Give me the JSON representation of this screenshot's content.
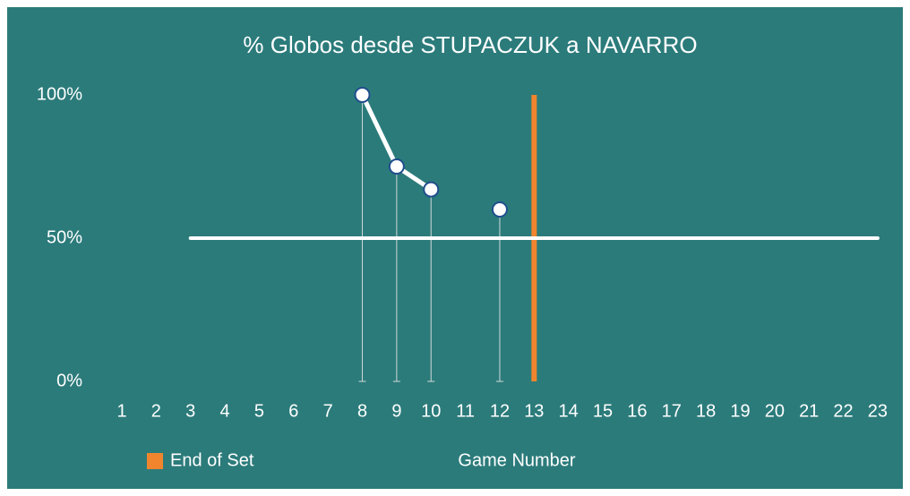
{
  "chart_data": {
    "type": "line",
    "title": "% Globos desde STUPACZUK a NAVARRO",
    "x_label": "Game Number",
    "categories": [
      "1",
      "2",
      "3",
      "4",
      "5",
      "6",
      "7",
      "8",
      "9",
      "10",
      "11",
      "12",
      "13",
      "14",
      "15",
      "16",
      "17",
      "18",
      "19",
      "20",
      "21",
      "22",
      "23"
    ],
    "series": [
      {
        "color": "#ffffff",
        "values": [
          null,
          null,
          null,
          null,
          null,
          null,
          null,
          100,
          75,
          67,
          null,
          60,
          null,
          null,
          null,
          null,
          null,
          null,
          null,
          null,
          null,
          null,
          null
        ],
        "markers": true
      },
      {
        "color": "#ffffff",
        "values": [
          null,
          null,
          50,
          50,
          50,
          50,
          50,
          50,
          50,
          50,
          50,
          50,
          50,
          50,
          50,
          50,
          50,
          50,
          50,
          50,
          50,
          50,
          50
        ],
        "markers": false
      }
    ],
    "end_of_set": {
      "label": "End of Set",
      "category": "13",
      "color": "#f0852d"
    },
    "ylim": [
      0,
      100
    ],
    "yticks": [
      {
        "value": 0,
        "label": "0%"
      },
      {
        "value": 50,
        "label": "50%"
      },
      {
        "value": 100,
        "label": "100%"
      }
    ],
    "background": "#2c7b7b"
  }
}
